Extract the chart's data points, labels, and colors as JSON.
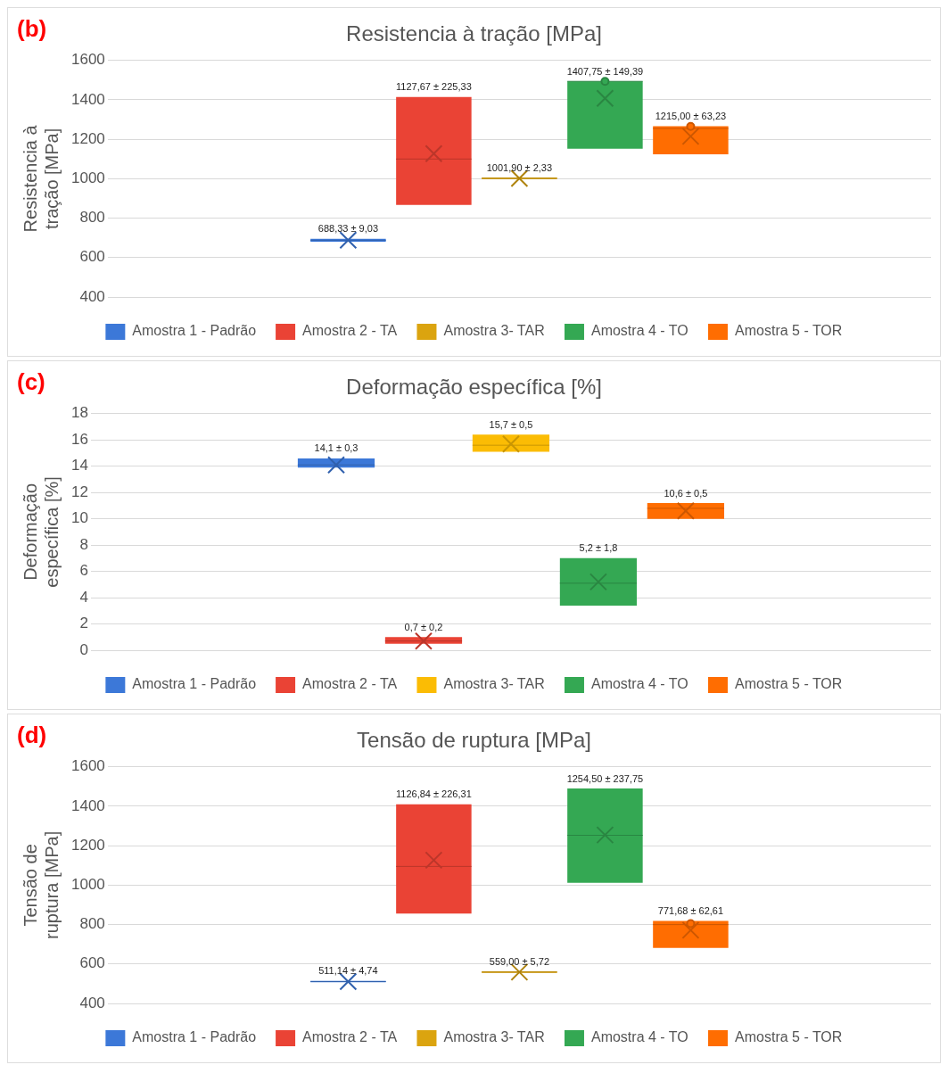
{
  "chart_data": [
    {
      "type": "box",
      "title": "Resistencia à tração [MPa]",
      "ylabel": "Resistencia à tração [MPa]",
      "annotations": [
        "(b)"
      ],
      "categories": [
        null
      ],
      "ylim": [
        400,
        1600
      ],
      "yticks": [
        400,
        600,
        800,
        1000,
        1200,
        1400,
        1600
      ],
      "grid": "y",
      "legend": "bottom",
      "tick_labels": "y",
      "series": [
        {
          "name": "Amostra 1 - Padrão",
          "color": "#3c78d8",
          "boxes": [
            {
              "low": 681,
              "q1": 681,
              "median": 688,
              "q3": 695,
              "high": 695,
              "mean": 688.33
            }
          ],
          "value_labels": [
            "688,33 ± 9,03"
          ]
        },
        {
          "name": "Amostra 2 - TA",
          "color": "#ea4335",
          "boxes": [
            {
              "low": 867,
              "q1": 867,
              "median": 1100,
              "q3": 1415,
              "high": 1415,
              "mean": 1127.67
            }
          ],
          "value_labels": [
            "1127,67 ± 225,33"
          ]
        },
        {
          "name": "Amostra 3- TAR",
          "color": "#dba40f",
          "boxes": [
            {
              "low": 998,
              "q1": 998,
              "median": 1002,
              "q3": 1006,
              "high": 1006,
              "mean": 1001.9
            }
          ],
          "value_labels": [
            "1001,90 ± 2,33"
          ]
        },
        {
          "name": "Amostra 4 - TO",
          "color": "#34a853",
          "boxes": [
            {
              "low": 1152,
              "q1": 1152,
              "median": 1494,
              "q3": 1494,
              "high": 1494,
              "mean": 1407.75,
              "outliers": [
                1494
              ]
            }
          ],
          "value_labels": [
            "1407,75 ± 149,39"
          ]
        },
        {
          "name": "Amostra 5 - TOR",
          "color": "#ff6d01",
          "boxes": [
            {
              "low": 1124,
              "q1": 1124,
              "median": 1255,
              "q3": 1267,
              "high": 1267,
              "mean": 1215,
              "outliers": [
                1265
              ]
            }
          ],
          "value_labels": [
            "1215,00 ± 63,23"
          ]
        }
      ]
    },
    {
      "type": "box",
      "title": "Deformação específica [%]",
      "ylabel": "Deformação específica [%]",
      "annotations": [
        "(c)"
      ],
      "categories": [
        null
      ],
      "ylim": [
        0,
        18
      ],
      "yticks": [
        0,
        2,
        4,
        6,
        8,
        10,
        12,
        14,
        16,
        18
      ],
      "grid": "y",
      "legend": "bottom",
      "tick_labels": "y",
      "series": [
        {
          "name": "Amostra 1 - Padrão",
          "color": "#3c78d8",
          "boxes": [
            {
              "low": 13.9,
              "q1": 13.9,
              "median": 14.1,
              "q3": 14.6,
              "high": 14.6,
              "mean": 14.1
            }
          ],
          "value_labels": [
            "14,1 ± 0,3"
          ]
        },
        {
          "name": "Amostra 2 - TA",
          "color": "#ea4335",
          "boxes": [
            {
              "low": 0.5,
              "q1": 0.5,
              "median": 0.7,
              "q3": 1.0,
              "high": 1.0,
              "mean": 0.7
            }
          ],
          "value_labels": [
            "0,7 ± 0,2"
          ]
        },
        {
          "name": "Amostra 3- TAR",
          "color": "#fbbc04",
          "boxes": [
            {
              "low": 15.1,
              "q1": 15.1,
              "median": 15.6,
              "q3": 16.4,
              "high": 16.4,
              "mean": 15.7
            }
          ],
          "value_labels": [
            "15,7 ± 0,5"
          ]
        },
        {
          "name": "Amostra 4 - TO",
          "color": "#34a853",
          "boxes": [
            {
              "low": 3.4,
              "q1": 3.4,
              "median": 5.1,
              "q3": 7.0,
              "high": 7.0,
              "mean": 5.2
            }
          ],
          "value_labels": [
            "5,2 ± 1,8"
          ]
        },
        {
          "name": "Amostra 5 - TOR",
          "color": "#ff6d01",
          "boxes": [
            {
              "low": 10.0,
              "q1": 10.0,
              "median": 10.8,
              "q3": 11.2,
              "high": 11.2,
              "mean": 10.6
            }
          ],
          "value_labels": [
            "10,6 ± 0,5"
          ]
        }
      ]
    },
    {
      "type": "box",
      "title": "Tensão de ruptura [MPa]",
      "ylabel": "Tensão de ruptura [MPa]",
      "annotations": [
        "(d)"
      ],
      "categories": [
        null
      ],
      "ylim": [
        400,
        1600
      ],
      "yticks": [
        400,
        600,
        800,
        1000,
        1200,
        1400,
        1600
      ],
      "grid": "y",
      "legend": "bottom",
      "tick_labels": "y",
      "series": [
        {
          "name": "Amostra 1 - Padrão",
          "color": "#3c78d8",
          "boxes": [
            {
              "low": 508,
              "q1": 508,
              "median": 511,
              "q3": 514,
              "high": 514,
              "mean": 511.14
            }
          ],
          "value_labels": [
            "511,14 ± 4,74"
          ]
        },
        {
          "name": "Amostra 2 - TA",
          "color": "#ea4335",
          "boxes": [
            {
              "low": 856,
              "q1": 856,
              "median": 1095,
              "q3": 1410,
              "high": 1410,
              "mean": 1126.84
            }
          ],
          "value_labels": [
            "1126,84 ± 226,31"
          ]
        },
        {
          "name": "Amostra 3- TAR",
          "color": "#dba40f",
          "boxes": [
            {
              "low": 555,
              "q1": 555,
              "median": 559,
              "q3": 563,
              "high": 563,
              "mean": 559
            }
          ],
          "value_labels": [
            "559,00 ± 5,72"
          ]
        },
        {
          "name": "Amostra 4 - TO",
          "color": "#34a853",
          "boxes": [
            {
              "low": 1012,
              "q1": 1012,
              "median": 1253,
              "q3": 1490,
              "high": 1490,
              "mean": 1254.5
            }
          ],
          "value_labels": [
            "1254,50 ± 237,75"
          ]
        },
        {
          "name": "Amostra 5 - TOR",
          "color": "#ff6d01",
          "boxes": [
            {
              "low": 682,
              "q1": 682,
              "median": 800,
              "q3": 818,
              "high": 818,
              "mean": 771.68,
              "outliers": [
                805
              ]
            }
          ],
          "value_labels": [
            "771,68 ± 62,61"
          ]
        }
      ]
    }
  ]
}
